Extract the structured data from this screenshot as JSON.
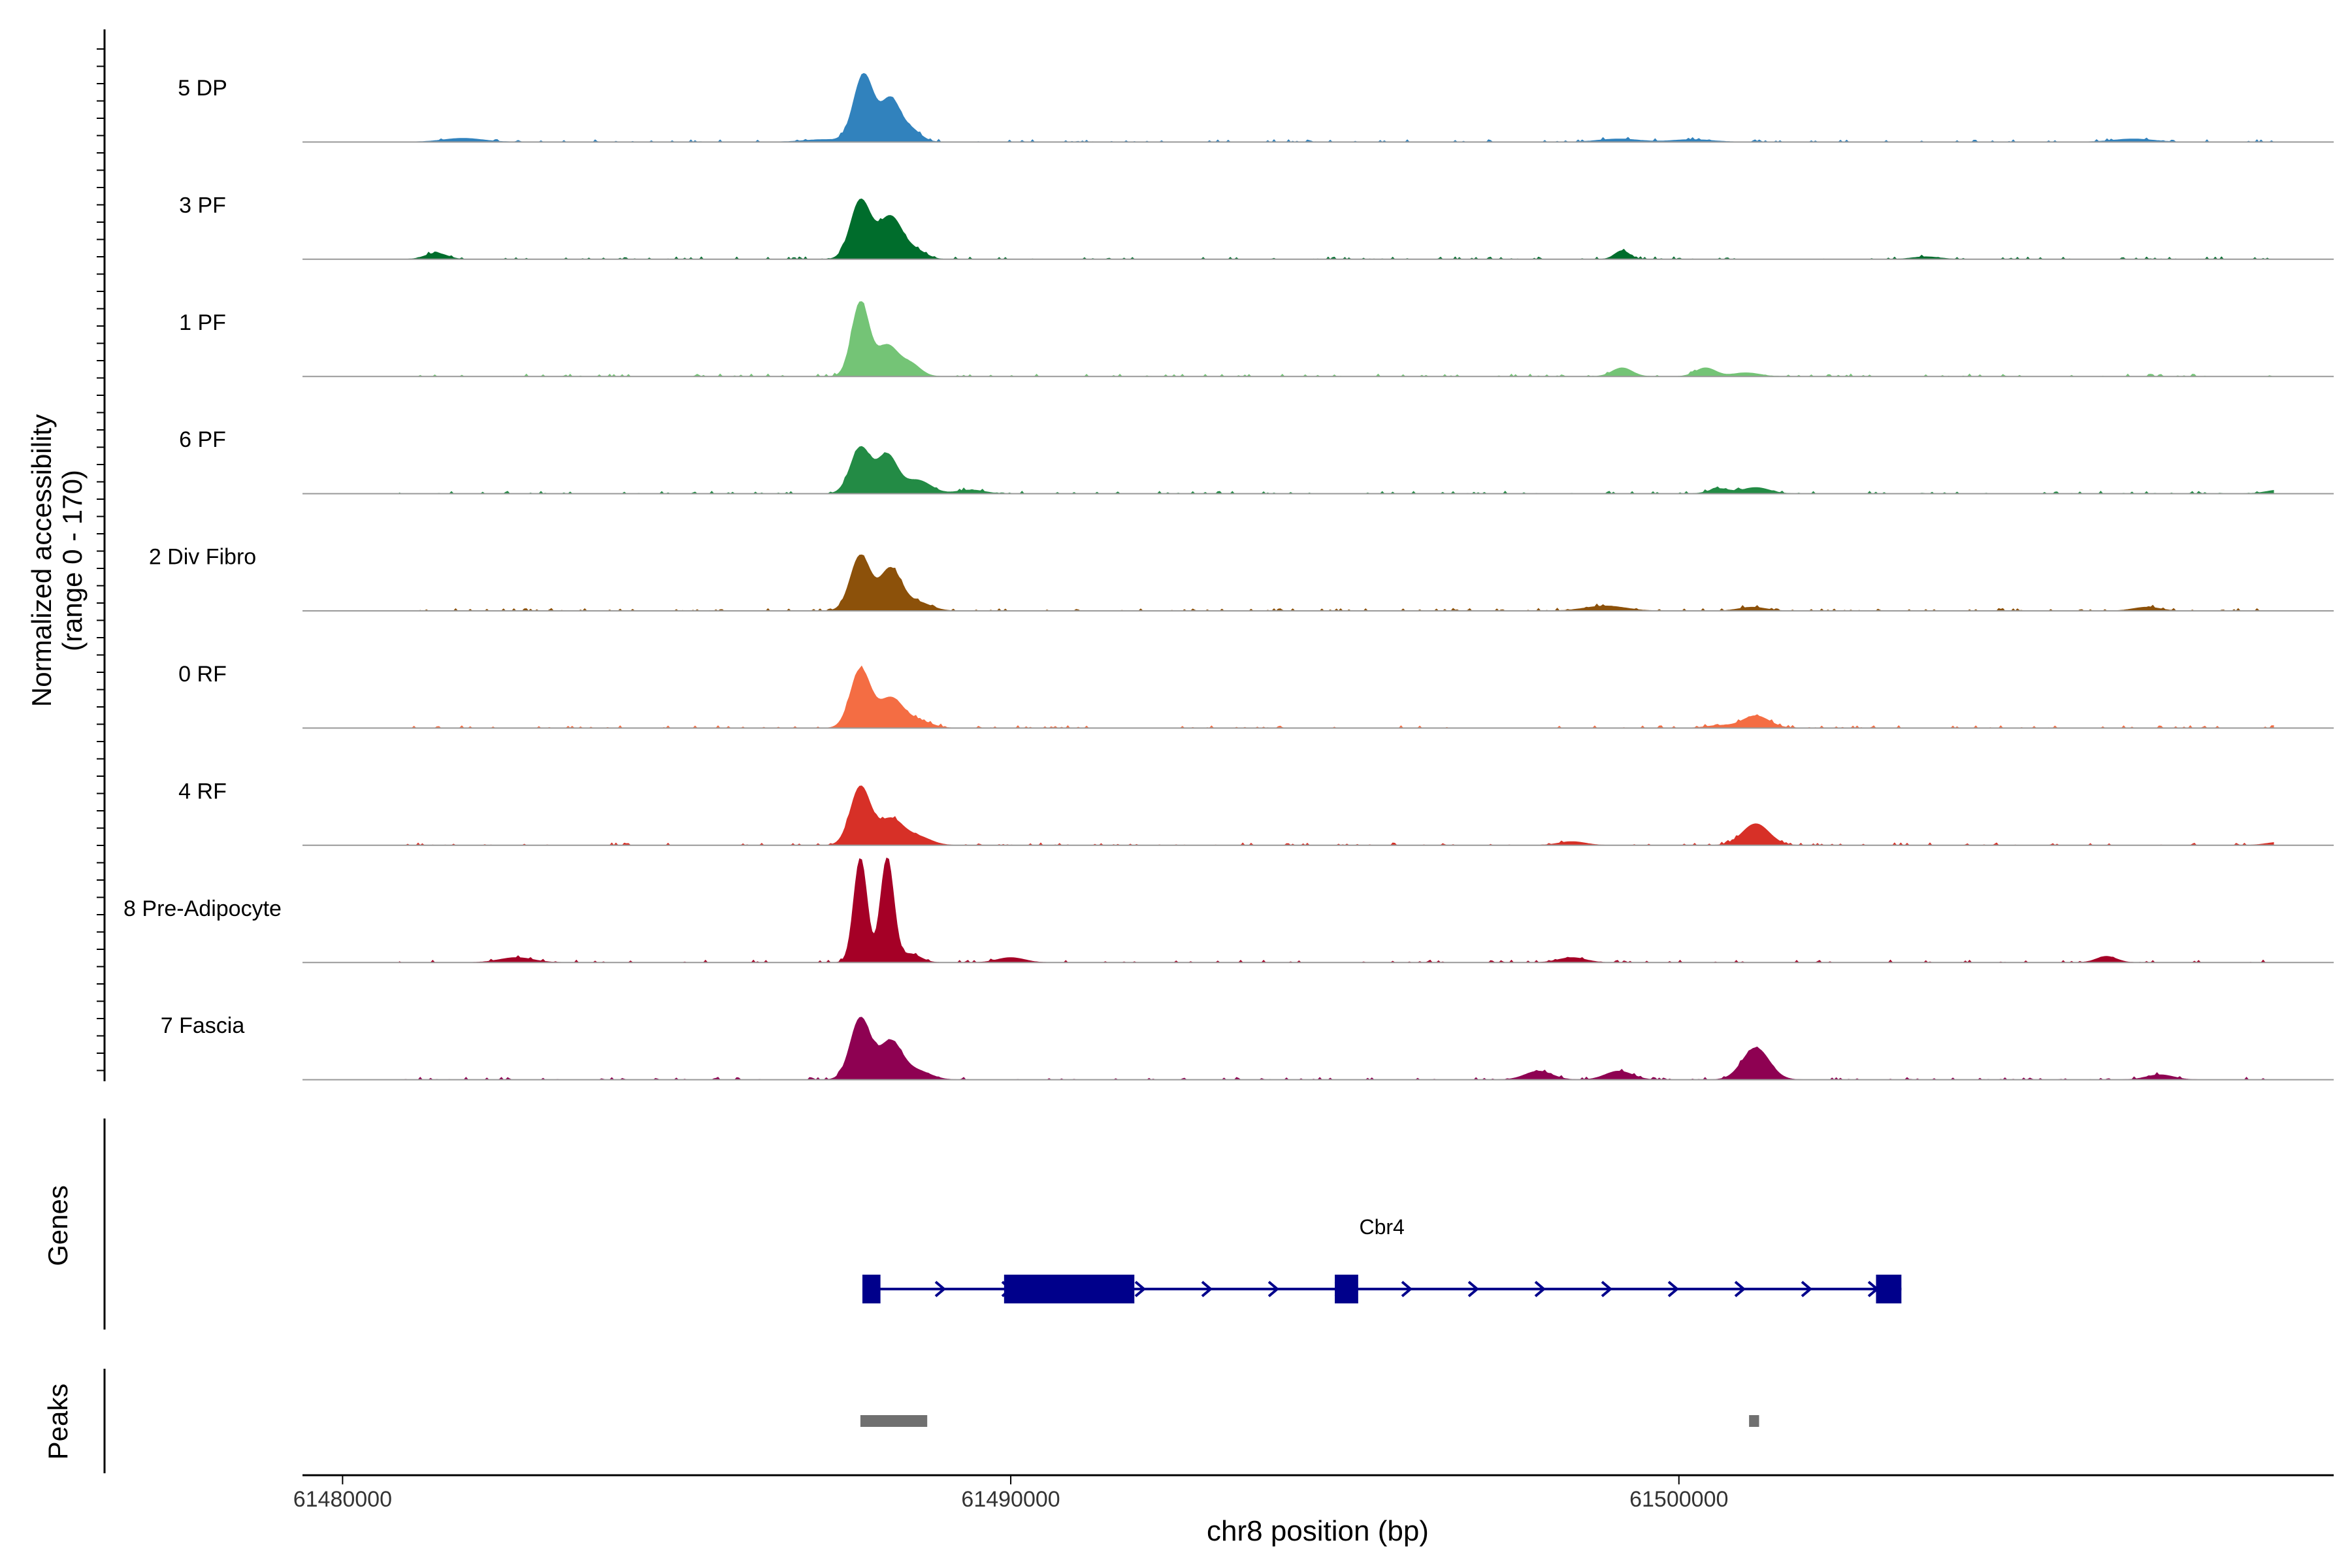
{
  "chart_data": {
    "type": "area",
    "panel_titles": {
      "accessibility_line1": "Normalized accessibility",
      "accessibility_line2": "(range 0 - 170)",
      "genes": "Genes",
      "peaks": "Peaks"
    },
    "xlabel": "chr8 position (bp)",
    "x_range": [
      61479400,
      61509800
    ],
    "x_ticks": [
      61480000,
      61490000,
      61500000
    ],
    "x_tick_labels": [
      "61480000",
      "61490000",
      "61500000"
    ],
    "y_range": [
      0,
      170
    ],
    "series": [
      {
        "name": "5 DP",
        "color": "#3182bd",
        "peaks": [
          [
            61487800,
            110,
            150
          ],
          [
            61488200,
            68,
            140
          ],
          [
            61488500,
            20,
            150
          ],
          [
            61481800,
            6,
            300
          ],
          [
            61487200,
            4,
            300
          ],
          [
            61499100,
            5,
            300
          ],
          [
            61500200,
            4,
            300
          ],
          [
            61506800,
            5,
            300
          ]
        ]
      },
      {
        "name": "3 PF",
        "color": "#006d2c",
        "peaks": [
          [
            61487750,
            95,
            150
          ],
          [
            61488200,
            70,
            180
          ],
          [
            61488600,
            12,
            150
          ],
          [
            61481400,
            10,
            160
          ],
          [
            61499150,
            14,
            110
          ],
          [
            61503700,
            4,
            200
          ]
        ]
      },
      {
        "name": "1 PF",
        "color": "#74c476",
        "peaks": [
          [
            61487750,
            120,
            130
          ],
          [
            61488150,
            50,
            160
          ],
          [
            61488500,
            20,
            150
          ],
          [
            61499150,
            14,
            150
          ],
          [
            61500400,
            14,
            150
          ],
          [
            61501000,
            6,
            200
          ]
        ]
      },
      {
        "name": "6 PF",
        "color": "#238b45",
        "peaks": [
          [
            61487750,
            75,
            150
          ],
          [
            61488150,
            62,
            150
          ],
          [
            61488600,
            22,
            200
          ],
          [
            61489400,
            6,
            200
          ],
          [
            61500600,
            8,
            150
          ],
          [
            61501150,
            10,
            200
          ],
          [
            61509000,
            6,
            200
          ]
        ]
      },
      {
        "name": "2 Div Fibro",
        "color": "#8c510a",
        "peaks": [
          [
            61487750,
            90,
            150
          ],
          [
            61488200,
            68,
            160
          ],
          [
            61488600,
            14,
            200
          ],
          [
            61498900,
            8,
            300
          ],
          [
            61501100,
            6,
            200
          ],
          [
            61507000,
            6,
            200
          ]
        ]
      },
      {
        "name": "0 RF",
        "color": "#f46d43",
        "peaks": [
          [
            61487750,
            95,
            150
          ],
          [
            61488200,
            48,
            180
          ],
          [
            61488600,
            12,
            200
          ],
          [
            61501150,
            20,
            200
          ],
          [
            61500600,
            4,
            200
          ]
        ]
      },
      {
        "name": "4 RF",
        "color": "#d73027",
        "peaks": [
          [
            61487750,
            95,
            150
          ],
          [
            61488200,
            42,
            180
          ],
          [
            61488600,
            14,
            200
          ],
          [
            61501150,
            35,
            200
          ],
          [
            61498400,
            6,
            200
          ],
          [
            61509000,
            5,
            200
          ]
        ]
      },
      {
        "name": "8 Pre-Adipocyte",
        "color": "#a50026",
        "peaks": [
          [
            61487750,
            170,
            100
          ],
          [
            61488150,
            170,
            100
          ],
          [
            61488500,
            14,
            150
          ],
          [
            61482600,
            8,
            250
          ],
          [
            61490000,
            8,
            200
          ],
          [
            61498400,
            8,
            200
          ],
          [
            61506400,
            10,
            150
          ]
        ]
      },
      {
        "name": "7 Fascia",
        "color": "#8e0152",
        "peaks": [
          [
            61487750,
            100,
            150
          ],
          [
            61488200,
            62,
            170
          ],
          [
            61488600,
            14,
            200
          ],
          [
            61501150,
            52,
            200
          ],
          [
            61497900,
            14,
            200
          ],
          [
            61499100,
            14,
            200
          ],
          [
            61507200,
            8,
            200
          ]
        ]
      }
    ],
    "genes": [
      {
        "name": "Cbr4",
        "start": 61487780,
        "end": 61503330,
        "strand": "+",
        "color": "#00008b",
        "exons": [
          [
            61487780,
            61488050
          ],
          [
            61489900,
            61491850
          ],
          [
            61494850,
            61495200
          ],
          [
            61502950,
            61503330
          ]
        ]
      }
    ],
    "peaks_track": [
      {
        "start": 61487750,
        "end": 61488750
      },
      {
        "start": 61501050,
        "end": 61501200
      }
    ],
    "grid": false,
    "legend": "none"
  }
}
